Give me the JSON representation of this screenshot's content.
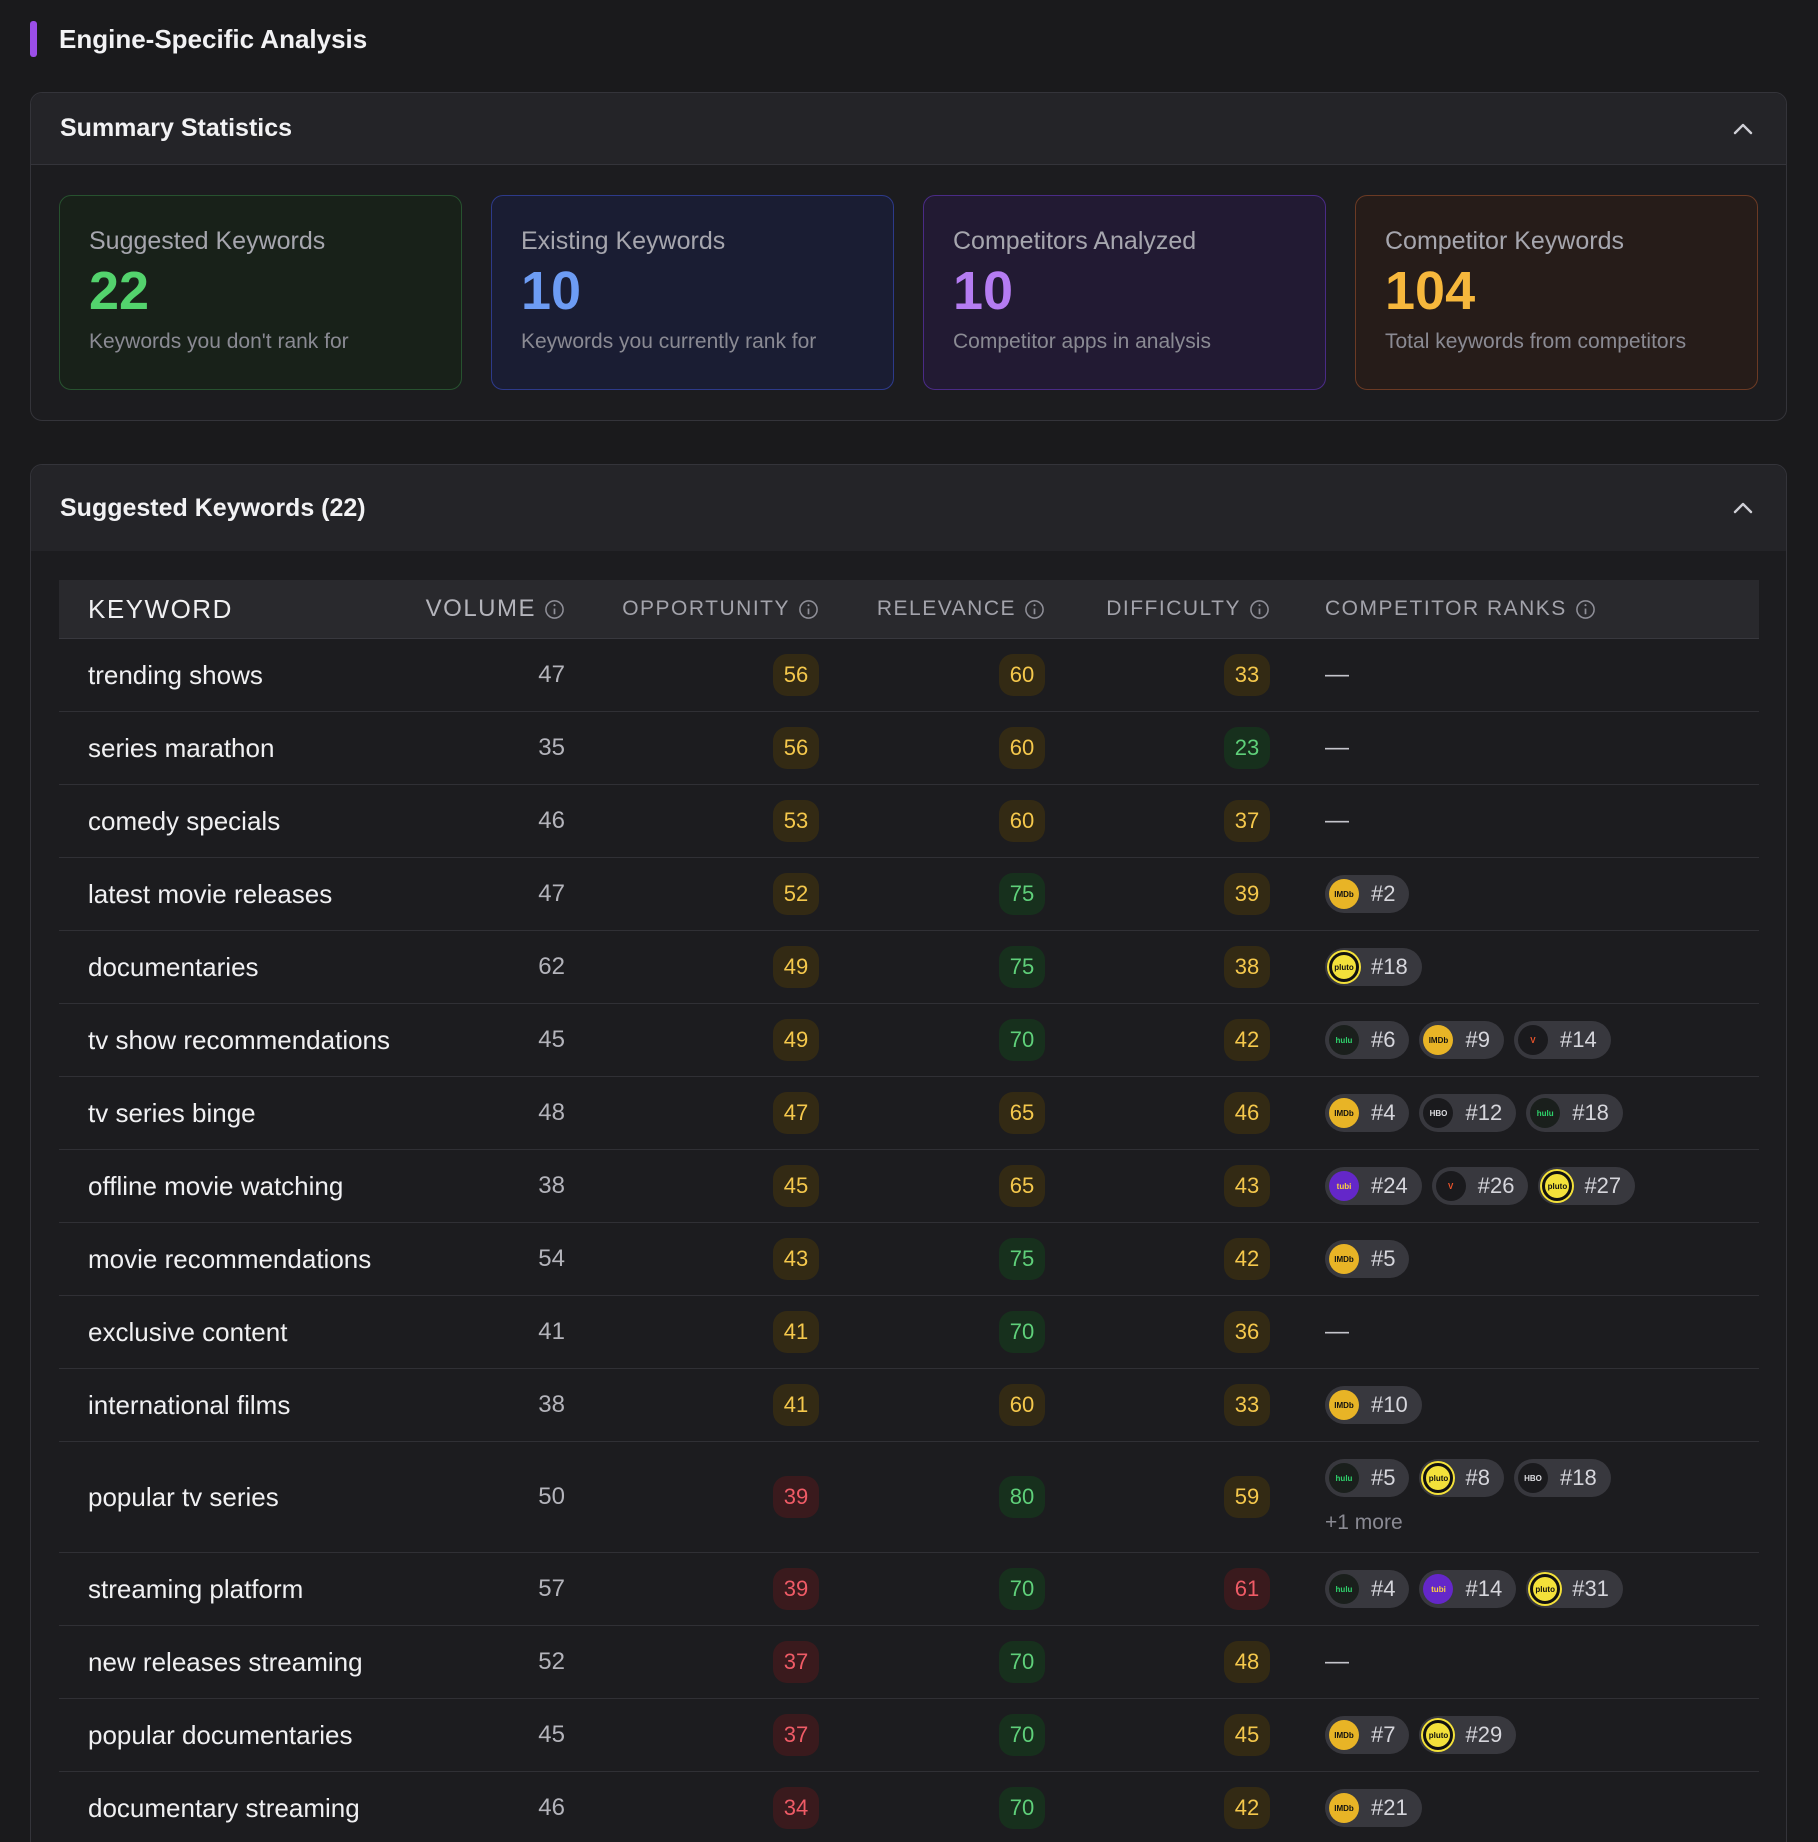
{
  "section": {
    "title": "Engine-Specific Analysis",
    "accent": "#9b4ee8"
  },
  "summary": {
    "title": "Summary Statistics",
    "cards": [
      {
        "label": "Suggested Keywords",
        "value": "22",
        "desc": "Keywords you don't rank for",
        "color": "#53d36d"
      },
      {
        "label": "Existing Keywords",
        "value": "10",
        "desc": "Keywords you currently rank for",
        "color": "#6d9cf4"
      },
      {
        "label": "Competitors Analyzed",
        "value": "10",
        "desc": "Competitor apps in analysis",
        "color": "#b57cf2"
      },
      {
        "label": "Competitor Keywords",
        "value": "104",
        "desc": "Total keywords from competitors",
        "color": "#f6b73c"
      }
    ]
  },
  "keywords": {
    "title": "Suggested Keywords (22)",
    "columns": [
      "KEYWORD",
      "VOLUME",
      "OPPORTUNITY",
      "RELEVANCE",
      "DIFFICULTY",
      "COMPETITOR RANKS"
    ],
    "rows": [
      {
        "keyword": "trending shows",
        "volume": "47",
        "opportunity": "56",
        "opp_level": "y",
        "relevance": "60",
        "rel_level": "y",
        "difficulty": "33",
        "dif_level": "y",
        "ranks": []
      },
      {
        "keyword": "series marathon",
        "volume": "35",
        "opportunity": "56",
        "opp_level": "y",
        "relevance": "60",
        "rel_level": "y",
        "difficulty": "23",
        "dif_level": "g",
        "ranks": []
      },
      {
        "keyword": "comedy specials",
        "volume": "46",
        "opportunity": "53",
        "opp_level": "y",
        "relevance": "60",
        "rel_level": "y",
        "difficulty": "37",
        "dif_level": "y",
        "ranks": []
      },
      {
        "keyword": "latest movie releases",
        "volume": "47",
        "opportunity": "52",
        "opp_level": "y",
        "relevance": "75",
        "rel_level": "g",
        "difficulty": "39",
        "dif_level": "y",
        "ranks": [
          {
            "app": "imdb",
            "rank": "#2"
          }
        ]
      },
      {
        "keyword": "documentaries",
        "volume": "62",
        "opportunity": "49",
        "opp_level": "y",
        "relevance": "75",
        "rel_level": "g",
        "difficulty": "38",
        "dif_level": "y",
        "ranks": [
          {
            "app": "pluto",
            "rank": "#18"
          }
        ]
      },
      {
        "keyword": "tv show recommendations",
        "volume": "45",
        "opportunity": "49",
        "opp_level": "y",
        "relevance": "70",
        "rel_level": "g",
        "difficulty": "42",
        "dif_level": "y",
        "ranks": [
          {
            "app": "hulu",
            "rank": "#6"
          },
          {
            "app": "imdb",
            "rank": "#9"
          },
          {
            "app": "vudu",
            "rank": "#14"
          }
        ]
      },
      {
        "keyword": "tv series binge",
        "volume": "48",
        "opportunity": "47",
        "opp_level": "y",
        "relevance": "65",
        "rel_level": "y",
        "difficulty": "46",
        "dif_level": "y",
        "ranks": [
          {
            "app": "imdb",
            "rank": "#4"
          },
          {
            "app": "hbo",
            "rank": "#12"
          },
          {
            "app": "hulu",
            "rank": "#18"
          }
        ]
      },
      {
        "keyword": "offline movie watching",
        "volume": "38",
        "opportunity": "45",
        "opp_level": "y",
        "relevance": "65",
        "rel_level": "y",
        "difficulty": "43",
        "dif_level": "y",
        "ranks": [
          {
            "app": "tubi",
            "rank": "#24"
          },
          {
            "app": "vudu",
            "rank": "#26"
          },
          {
            "app": "pluto",
            "rank": "#27"
          }
        ]
      },
      {
        "keyword": "movie recommendations",
        "volume": "54",
        "opportunity": "43",
        "opp_level": "y",
        "relevance": "75",
        "rel_level": "g",
        "difficulty": "42",
        "dif_level": "y",
        "ranks": [
          {
            "app": "imdb",
            "rank": "#5"
          }
        ]
      },
      {
        "keyword": "exclusive content",
        "volume": "41",
        "opportunity": "41",
        "opp_level": "y",
        "relevance": "70",
        "rel_level": "g",
        "difficulty": "36",
        "dif_level": "y",
        "ranks": []
      },
      {
        "keyword": "international films",
        "volume": "38",
        "opportunity": "41",
        "opp_level": "y",
        "relevance": "60",
        "rel_level": "y",
        "difficulty": "33",
        "dif_level": "y",
        "ranks": [
          {
            "app": "imdb",
            "rank": "#10"
          }
        ]
      },
      {
        "keyword": "popular tv series",
        "volume": "50",
        "opportunity": "39",
        "opp_level": "r",
        "relevance": "80",
        "rel_level": "g",
        "difficulty": "59",
        "dif_level": "y",
        "ranks": [
          {
            "app": "hulu",
            "rank": "#5"
          },
          {
            "app": "pluto",
            "rank": "#8"
          },
          {
            "app": "hbo",
            "rank": "#18"
          }
        ],
        "more": "+1 more"
      },
      {
        "keyword": "streaming platform",
        "volume": "57",
        "opportunity": "39",
        "opp_level": "r",
        "relevance": "70",
        "rel_level": "g",
        "difficulty": "61",
        "dif_level": "r",
        "ranks": [
          {
            "app": "hulu",
            "rank": "#4"
          },
          {
            "app": "tubi",
            "rank": "#14"
          },
          {
            "app": "pluto",
            "rank": "#31"
          }
        ]
      },
      {
        "keyword": "new releases streaming",
        "volume": "52",
        "opportunity": "37",
        "opp_level": "r",
        "relevance": "70",
        "rel_level": "g",
        "difficulty": "48",
        "dif_level": "y",
        "ranks": []
      },
      {
        "keyword": "popular documentaries",
        "volume": "45",
        "opportunity": "37",
        "opp_level": "r",
        "relevance": "70",
        "rel_level": "g",
        "difficulty": "45",
        "dif_level": "y",
        "ranks": [
          {
            "app": "imdb",
            "rank": "#7"
          },
          {
            "app": "pluto",
            "rank": "#29"
          }
        ]
      },
      {
        "keyword": "documentary streaming",
        "volume": "46",
        "opportunity": "34",
        "opp_level": "r",
        "relevance": "70",
        "rel_level": "g",
        "difficulty": "42",
        "dif_level": "y",
        "ranks": [
          {
            "app": "imdb",
            "rank": "#21"
          }
        ]
      }
    ],
    "empty_rank": "—"
  }
}
